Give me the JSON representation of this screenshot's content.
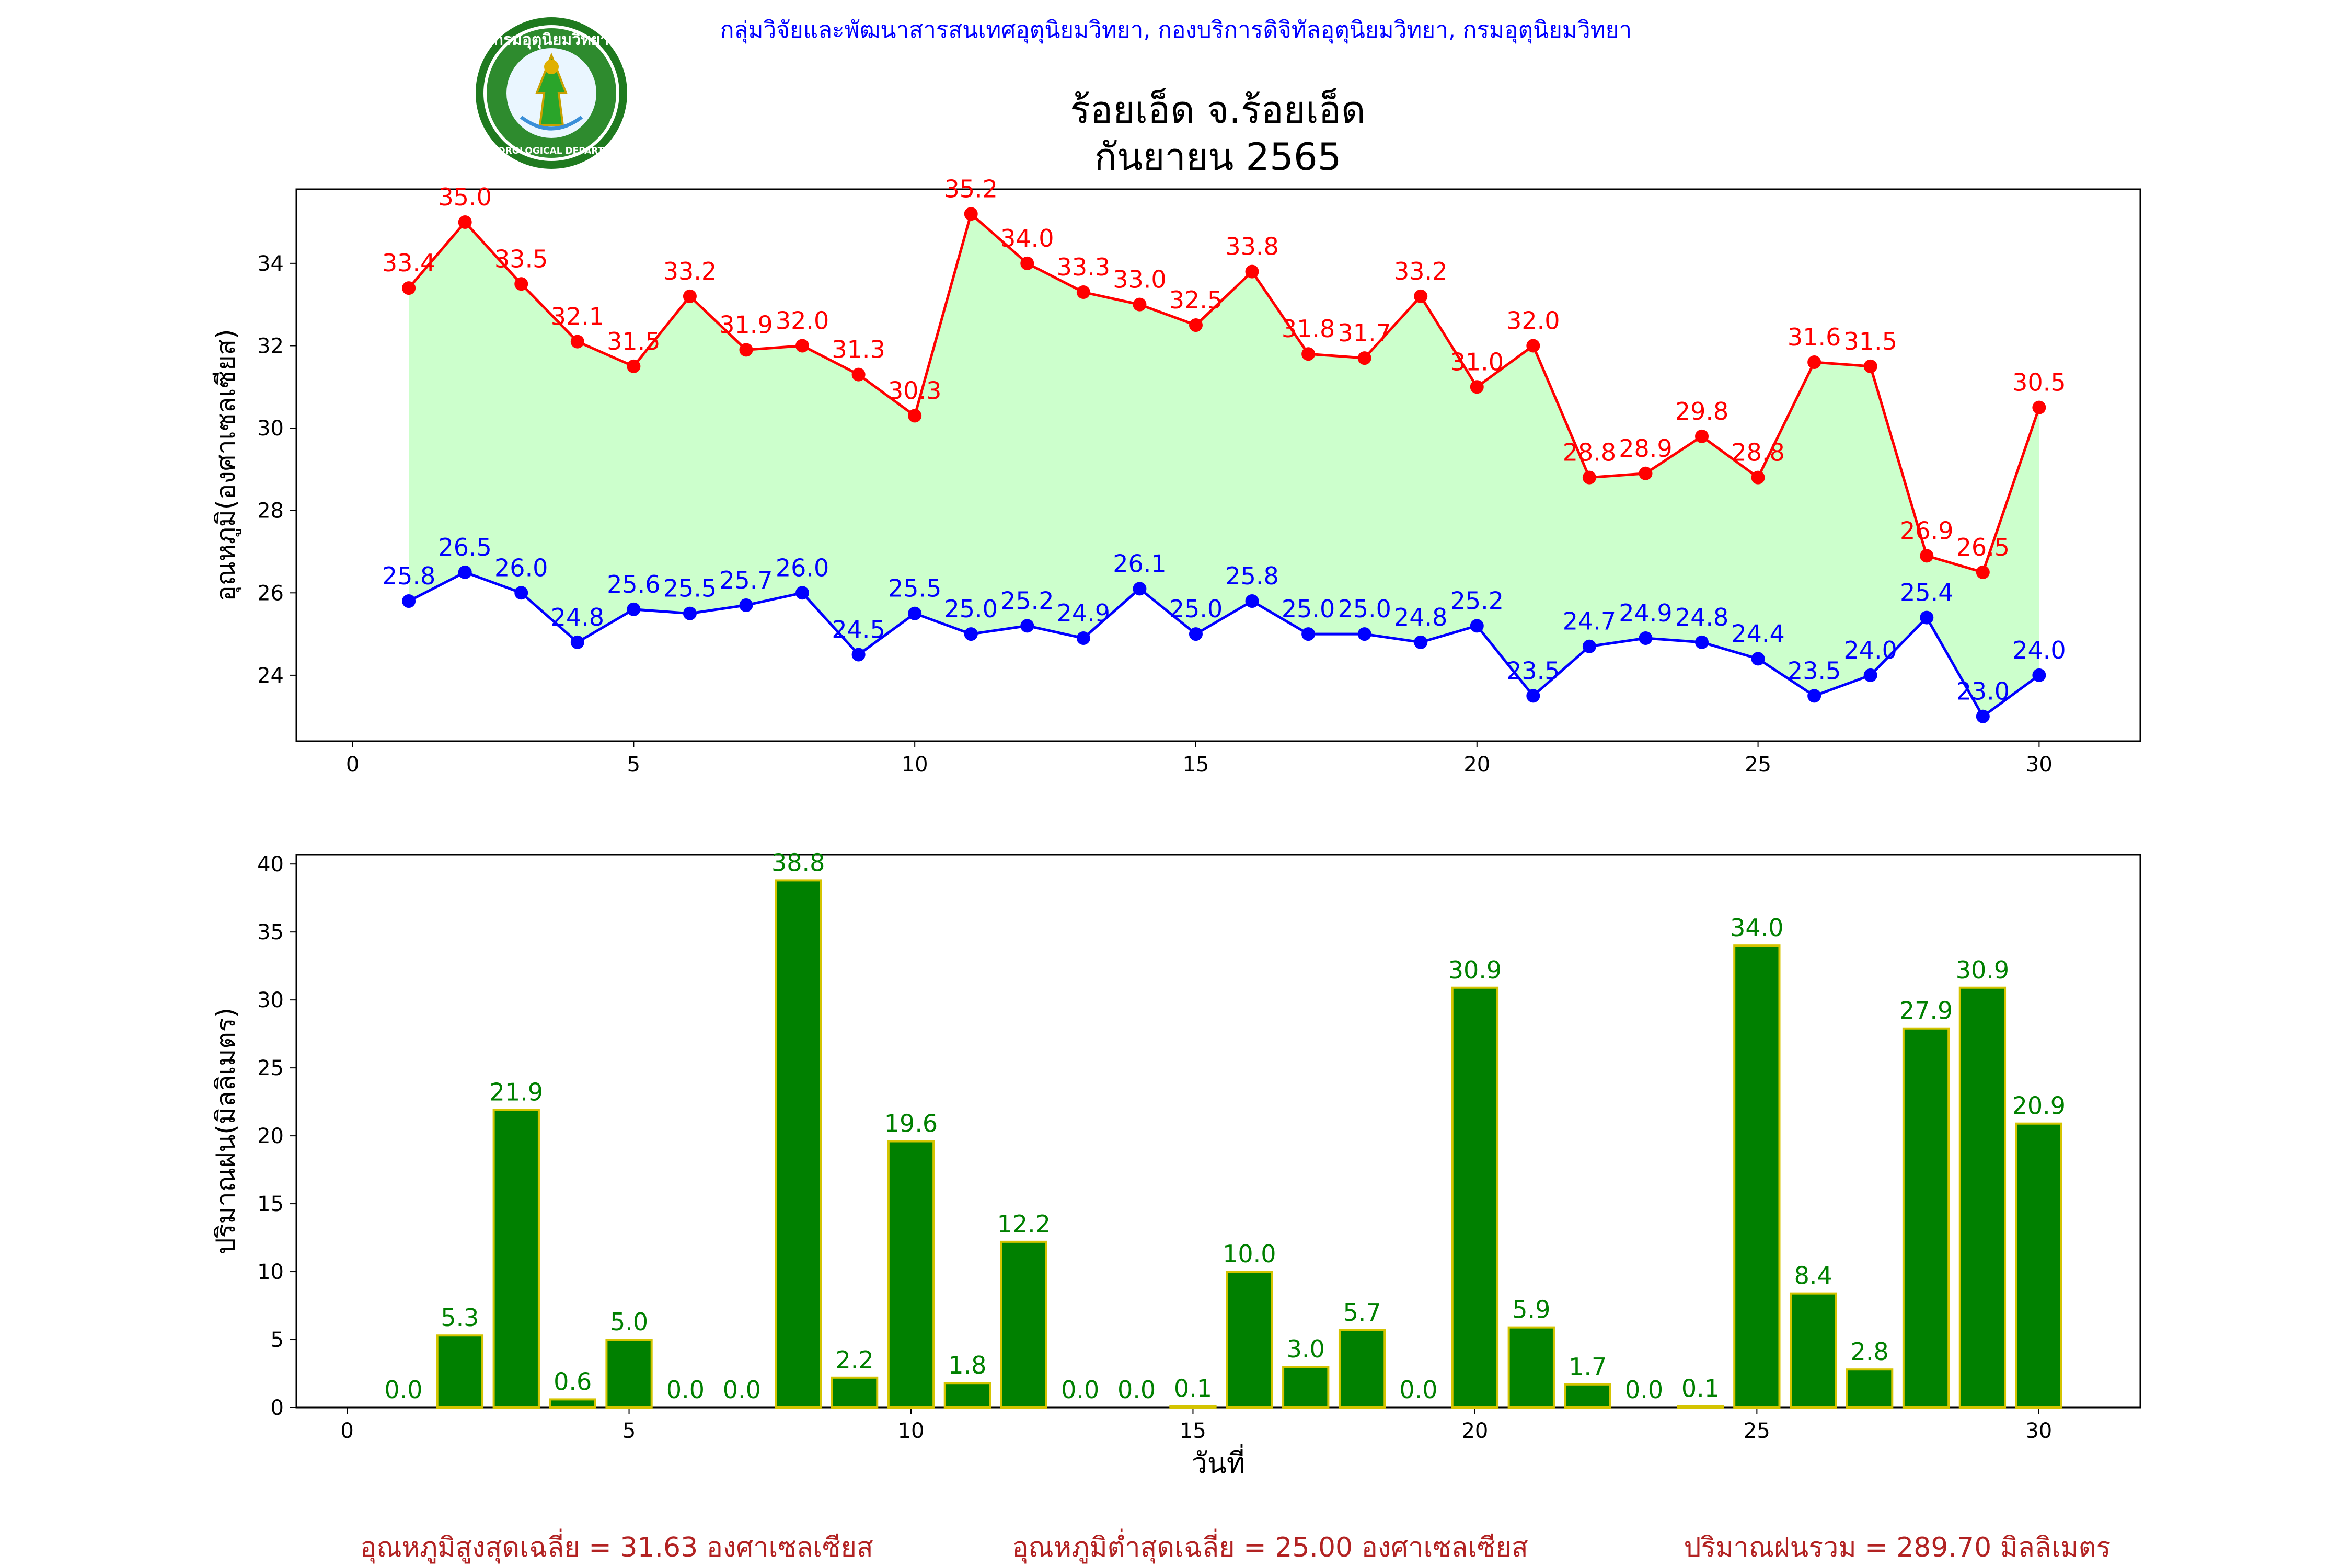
{
  "header": {
    "agency": "กลุ่มวิจัยและพัฒนาสารสนเทศอุตุนิยมวิทยา, กองบริการดิจิทัลอุตุนิยมวิทยา, กรมอุตุนิยมวิทยา",
    "title_line1": "ร้อยเอ็ด จ.ร้อยเอ็ด",
    "title_line2": "กันยายน 2565",
    "logo_text": "กรมอุตุนิยมวิทยา METEOROLOGICAL DEPARTMENT"
  },
  "footer": {
    "max_avg": "อุณหภูมิสูงสุดเฉลี่ย = 31.63 องศาเซลเซียส",
    "min_avg": "อุณหภูมิต่ำสุดเฉลี่ย = 25.00 องศาเซลเซียส",
    "rain_total": "ปริมาณฝนรวม = 289.70 มิลลิเมตร"
  },
  "colors": {
    "max": "#ff0000",
    "min": "#0000ff",
    "fill": "#ccffcc",
    "bar": "#008000",
    "bar_edge": "#d4c400",
    "agency": "#0000ff",
    "footer": "#b22222"
  },
  "chart_data": [
    {
      "type": "line",
      "ylabel": "อุณหภูมิ(องศาเซลเซียส)",
      "xlim": [
        -1,
        31.8
      ],
      "ylim": [
        22.4,
        35.8
      ],
      "xticks": [
        0,
        5,
        10,
        15,
        20,
        25,
        30
      ],
      "yticks": [
        24,
        26,
        28,
        30,
        32,
        34
      ],
      "x": [
        1,
        2,
        3,
        4,
        5,
        6,
        7,
        8,
        9,
        10,
        11,
        12,
        13,
        14,
        15,
        16,
        17,
        18,
        19,
        20,
        21,
        22,
        23,
        24,
        25,
        26,
        27,
        28,
        29,
        30
      ],
      "series": [
        {
          "key": "max",
          "values": [
            33.4,
            35.0,
            33.5,
            32.1,
            31.5,
            33.2,
            31.9,
            32.0,
            31.3,
            30.3,
            35.2,
            34.0,
            33.3,
            33.0,
            32.5,
            33.8,
            31.8,
            31.7,
            33.2,
            31.0,
            32.0,
            28.8,
            28.9,
            29.8,
            28.8,
            31.6,
            31.5,
            26.9,
            26.5,
            30.5
          ]
        },
        {
          "key": "min",
          "values": [
            25.8,
            26.5,
            26.0,
            24.8,
            25.6,
            25.5,
            25.7,
            26.0,
            24.5,
            25.5,
            25.0,
            25.2,
            24.9,
            26.1,
            25.0,
            25.8,
            25.0,
            25.0,
            24.8,
            25.2,
            23.5,
            24.7,
            24.9,
            24.8,
            24.4,
            23.5,
            24.0,
            25.4,
            23.0,
            24.0
          ]
        }
      ]
    },
    {
      "type": "bar",
      "xlabel": "วันที่",
      "ylabel": "ปริมาณฝน(มิลลิเมตร)",
      "xlim": [
        -0.9,
        31.8
      ],
      "ylim": [
        0,
        40.7
      ],
      "xticks": [
        0,
        5,
        10,
        15,
        20,
        25,
        30
      ],
      "yticks": [
        0,
        5,
        10,
        15,
        20,
        25,
        30,
        35,
        40
      ],
      "x": [
        1,
        2,
        3,
        4,
        5,
        6,
        7,
        8,
        9,
        10,
        11,
        12,
        13,
        14,
        15,
        16,
        17,
        18,
        19,
        20,
        21,
        22,
        23,
        24,
        25,
        26,
        27,
        28,
        29,
        30
      ],
      "values": [
        0.0,
        5.3,
        21.9,
        0.6,
        5.0,
        0.0,
        0.0,
        38.8,
        2.2,
        19.6,
        1.8,
        12.2,
        0.0,
        0.0,
        0.1,
        10.0,
        3.0,
        5.7,
        0.0,
        30.9,
        5.9,
        1.7,
        0.0,
        0.1,
        34.0,
        8.4,
        2.8,
        27.9,
        30.9,
        20.9
      ]
    }
  ]
}
